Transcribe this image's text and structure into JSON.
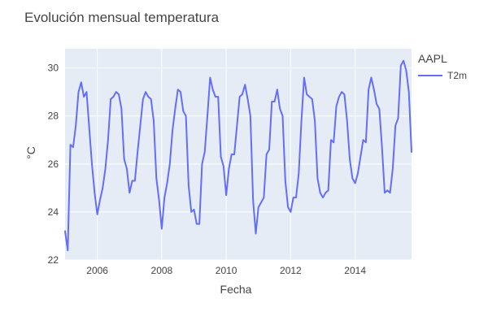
{
  "chart_data": {
    "type": "line",
    "title": "Evolución mensual temperatura",
    "xlabel": "Fecha",
    "ylabel": "°C",
    "legend_title": "AAPL",
    "legend_position": "top-right",
    "grid": true,
    "xlim": [
      "2005-01-01",
      "2015-10-01"
    ],
    "ylim": [
      22,
      30.8
    ],
    "x_ticks": [
      "2006",
      "2008",
      "2010",
      "2012",
      "2014"
    ],
    "y_ticks": [
      22,
      24,
      26,
      28,
      30
    ],
    "colors": {
      "plot_background": "#e5ecf6",
      "grid": "#ffffff",
      "line": "#636efa",
      "text": "#444444"
    },
    "series": [
      {
        "name": "T2m",
        "color": "#636efa",
        "x": [
          "2005-01",
          "2005-02",
          "2005-03",
          "2005-04",
          "2005-05",
          "2005-06",
          "2005-07",
          "2005-08",
          "2005-09",
          "2005-10",
          "2005-11",
          "2005-12",
          "2006-01",
          "2006-02",
          "2006-03",
          "2006-04",
          "2006-05",
          "2006-06",
          "2006-07",
          "2006-08",
          "2006-09",
          "2006-10",
          "2006-11",
          "2006-12",
          "2007-01",
          "2007-02",
          "2007-03",
          "2007-04",
          "2007-05",
          "2007-06",
          "2007-07",
          "2007-08",
          "2007-09",
          "2007-10",
          "2007-11",
          "2007-12",
          "2008-01",
          "2008-02",
          "2008-03",
          "2008-04",
          "2008-05",
          "2008-06",
          "2008-07",
          "2008-08",
          "2008-09",
          "2008-10",
          "2008-11",
          "2008-12",
          "2009-01",
          "2009-02",
          "2009-03",
          "2009-04",
          "2009-05",
          "2009-06",
          "2009-07",
          "2009-08",
          "2009-09",
          "2009-10",
          "2009-11",
          "2009-12",
          "2010-01",
          "2010-02",
          "2010-03",
          "2010-04",
          "2010-05",
          "2010-06",
          "2010-07",
          "2010-08",
          "2010-09",
          "2010-10",
          "2010-11",
          "2010-12",
          "2011-01",
          "2011-02",
          "2011-03",
          "2011-04",
          "2011-05",
          "2011-06",
          "2011-07",
          "2011-08",
          "2011-09",
          "2011-10",
          "2011-11",
          "2011-12",
          "2012-01",
          "2012-02",
          "2012-03",
          "2012-04",
          "2012-05",
          "2012-06",
          "2012-07",
          "2012-08",
          "2012-09",
          "2012-10",
          "2012-11",
          "2012-12",
          "2013-01",
          "2013-02",
          "2013-03",
          "2013-04",
          "2013-05",
          "2013-06",
          "2013-07",
          "2013-08",
          "2013-09",
          "2013-10",
          "2013-11",
          "2013-12",
          "2014-01",
          "2014-02",
          "2014-03",
          "2014-04",
          "2014-05",
          "2014-06",
          "2014-07",
          "2014-08",
          "2014-09",
          "2014-10",
          "2014-11",
          "2014-12",
          "2015-01",
          "2015-02",
          "2015-03",
          "2015-04",
          "2015-05",
          "2015-06",
          "2015-07",
          "2015-08",
          "2015-09",
          "2015-10"
        ],
        "y": [
          23.2,
          22.4,
          26.8,
          26.7,
          27.6,
          29.0,
          29.4,
          28.8,
          29.0,
          27.5,
          26.0,
          24.8,
          23.9,
          24.5,
          25.0,
          25.8,
          27.0,
          28.7,
          28.8,
          29.0,
          28.9,
          28.3,
          26.2,
          25.8,
          24.8,
          25.3,
          25.3,
          26.5,
          27.6,
          28.7,
          29.0,
          28.8,
          28.7,
          27.8,
          25.4,
          24.5,
          23.3,
          24.6,
          25.2,
          26.0,
          27.4,
          28.3,
          29.1,
          29.0,
          28.2,
          28.0,
          25.1,
          24.0,
          24.1,
          23.5,
          23.5,
          26.0,
          26.5,
          28.0,
          29.6,
          29.1,
          28.8,
          28.8,
          26.3,
          25.9,
          24.7,
          25.8,
          26.4,
          26.4,
          27.6,
          28.8,
          28.9,
          29.3,
          28.7,
          28.0,
          24.5,
          23.1,
          24.2,
          24.4,
          24.6,
          26.4,
          26.6,
          28.6,
          28.6,
          29.1,
          28.3,
          28.0,
          25.3,
          24.2,
          24.0,
          24.6,
          24.6,
          25.6,
          27.8,
          29.6,
          28.9,
          28.8,
          28.7,
          27.8,
          25.4,
          24.8,
          24.6,
          24.8,
          24.9,
          27.0,
          26.9,
          28.4,
          28.8,
          29.0,
          28.9,
          27.8,
          26.2,
          25.4,
          25.2,
          25.6,
          26.3,
          27.0,
          26.9,
          29.1,
          29.6,
          29.1,
          28.5,
          28.3,
          26.7,
          24.8,
          24.9,
          24.8,
          25.8,
          27.6,
          27.9,
          30.1,
          30.3,
          29.9,
          29.0,
          26.5
        ]
      }
    ]
  }
}
